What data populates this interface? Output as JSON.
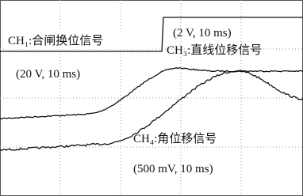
{
  "labels": {
    "ch1": "CH₁:合闸换位信号",
    "ch1_scale": "(2 V, 10 ms)",
    "ch3": "CH₃:直线位移信号",
    "ch3_scale": "(20 V, 10 ms)",
    "ch4": "CH₄:角位移信号",
    "ch4_scale": "(500 mV, 10 ms)"
  }
}
